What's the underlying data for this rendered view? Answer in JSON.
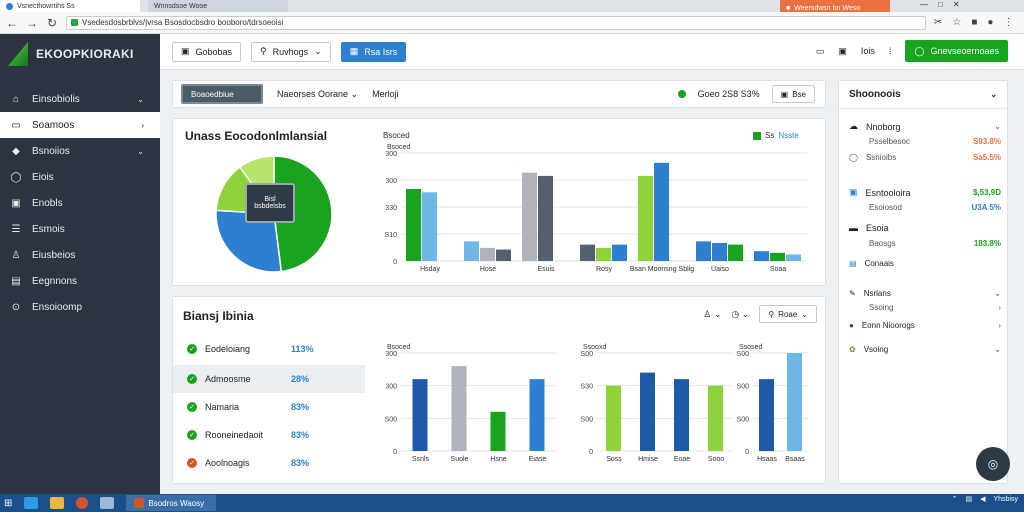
{
  "browser": {
    "active_tab": "Vsnecthowrtihs Ss",
    "second_tab": "Wnnsdsoe Wooe",
    "alert_tab": "Weersdwsn bn Weso",
    "url": "Vsedesdosbrblvs/|vrsa Bsosdocbsdro booboro/tdrsoeoisi"
  },
  "sidebar": {
    "brand": "EKOOPKIORAKI",
    "items": [
      {
        "label": "Einsobiolis",
        "icon": "home-icon",
        "chev": "⌄"
      },
      {
        "label": "Soamoos",
        "icon": "search-icon",
        "chev": "›",
        "active": true
      },
      {
        "label": "Bsnoiios",
        "icon": "tag-icon",
        "chev": "⌄"
      },
      {
        "label": "Eiois",
        "icon": "chat-icon"
      },
      {
        "label": "Enobls",
        "icon": "box-icon"
      },
      {
        "label": "Esmois",
        "icon": "list-icon"
      },
      {
        "label": "Eiusbeios",
        "icon": "user-icon"
      },
      {
        "label": "Eegnnons",
        "icon": "car-icon"
      },
      {
        "label": "Ensoioomp",
        "icon": "gear-icon"
      }
    ]
  },
  "toolbar": {
    "btn1": "Gobobas",
    "btn2": "Ruvhogs",
    "btn3": "Rsa Isrs",
    "right_label": "Iois",
    "green_btn": "Gnevseoernoaes"
  },
  "filterbar": {
    "chip": "Boaoedbiue",
    "select": "Naeorses Oorane",
    "label": "Merloji",
    "status": "Goeo 2S8 S3%",
    "btn": "Bse"
  },
  "top_card": {
    "title": "Unass Eocodonlmlansial",
    "donut_center": "Bisl\nbsbdelsbs",
    "bar_label": "Bsoced",
    "legend_sq": "Ss",
    "legend_text": "Nsste",
    "categories": [
      "Hsday",
      "Hose",
      "Esuis",
      "Rosy",
      "Bsan Moonsng\nSblig",
      "Uaiso",
      "Soaa"
    ]
  },
  "chart_data": [
    {
      "type": "pie",
      "values": [
        48,
        28,
        14,
        10
      ],
      "colors": [
        "#1aa31f",
        "#2f7fd1",
        "#8ed33a",
        "#b7e46a"
      ]
    },
    {
      "type": "bar",
      "xlabel": "Bsoced",
      "yticks": [
        "300",
        "300",
        "330",
        "S10",
        "0"
      ],
      "categories": [
        "Hsday",
        "Hose",
        "Esuis",
        "Rosy",
        "Bsan Moonsng Sblig",
        "Uaiso",
        "Soaa"
      ],
      "series": [
        {
          "values": [
            220,
            60,
            270,
            50,
            260,
            60,
            30
          ]
        },
        {
          "values": [
            210,
            40,
            260,
            40,
            300,
            55,
            25
          ]
        },
        {
          "values": [
            0,
            35,
            0,
            50,
            0,
            50,
            20
          ]
        }
      ],
      "ylim": [
        0,
        330
      ]
    },
    {
      "type": "bar",
      "xlabel": "Bsoced",
      "yticks": [
        "300",
        "300",
        "S00",
        "0"
      ],
      "categories": [
        "Ssnls",
        "Suole",
        "Hsne",
        "Eiase"
      ],
      "series": [
        {
          "values": [
            220,
            260,
            120,
            220
          ]
        }
      ],
      "ylim": [
        0,
        300
      ]
    },
    {
      "type": "bar",
      "xlabel": "Ssooxd",
      "yticks": [
        "S00",
        "S30",
        "S00",
        "0"
      ],
      "categories": [
        "Soss",
        "Hmise",
        "Eoae",
        "Sooo"
      ],
      "series": [
        {
          "values": [
            200,
            240,
            220,
            200
          ]
        }
      ],
      "ylim": [
        0,
        300
      ]
    },
    {
      "type": "bar",
      "xlabel": "Ssosed",
      "yticks": [
        "S00",
        "S00",
        "S00",
        "0"
      ],
      "categories": [
        "Hsaas",
        "Bsaas"
      ],
      "series": [
        {
          "values": [
            220,
            300
          ]
        }
      ],
      "ylim": [
        0,
        300
      ]
    }
  ],
  "bottom_card": {
    "title": "Biansj Ibinia",
    "search_btn": "Roae",
    "rows": [
      {
        "label": "Eodeloiang",
        "pct": "113%"
      },
      {
        "label": "Admoosme",
        "pct": "28%"
      },
      {
        "label": "Namaria",
        "pct": "83%"
      },
      {
        "label": "Rooneinedaoit",
        "pct": "83%"
      },
      {
        "label": "Aoolnoagis",
        "pct": "83%"
      }
    ]
  },
  "right_panel": {
    "title": "Shoonoois",
    "rows": [
      {
        "label": "Nnoborg",
        "sub": "",
        "value": ""
      },
      {
        "label": "Psselbesoc",
        "value": "S93.8%",
        "color": "#e9713f"
      },
      {
        "label": "Ssnioibs",
        "value": "Sa5.5%",
        "color": "#e9713f"
      },
      {
        "label": "Esntooloira",
        "value": "$,53,9D",
        "color": "#1aa31f"
      },
      {
        "label": "Esoiosod",
        "value": "U3A 5%",
        "color": "#2f7fd1"
      },
      {
        "label": "Esoia",
        "value": ""
      },
      {
        "label": "Baosgs",
        "value": "183.8%",
        "color": "#1aa31f"
      },
      {
        "label": "Conaais",
        "value": ""
      },
      {
        "label": "Nsrlans",
        "value": ""
      },
      {
        "label": "Ssoing",
        "value": ""
      },
      {
        "label": "Eonn Nioorogs",
        "value": ""
      },
      {
        "label": "Vsoing",
        "value": ""
      }
    ]
  },
  "taskbar": {
    "task": "Bsodros Waosy",
    "clock": "Yhsbisy"
  }
}
